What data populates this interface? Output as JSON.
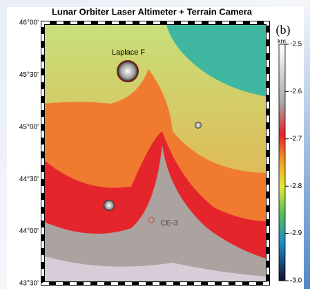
{
  "title": "Lunar Orbiter Laser Altimeter + Terrain Camera",
  "panel_label": "(b)",
  "latitude_labels": [
    "46°00'",
    "45°30'",
    "45°00'",
    "44°30'",
    "44°00'",
    "43°30'"
  ],
  "features": [
    "Laplace F",
    "CE-3"
  ],
  "colorbar": {
    "unit": "km",
    "lim": [
      -3,
      -2.5
    ],
    "ticks": [
      -2.5,
      -2.6,
      -2.7,
      -2.8,
      -2.9,
      {
        "value": -3,
        "label": "-3.0"
      }
    ]
  }
}
